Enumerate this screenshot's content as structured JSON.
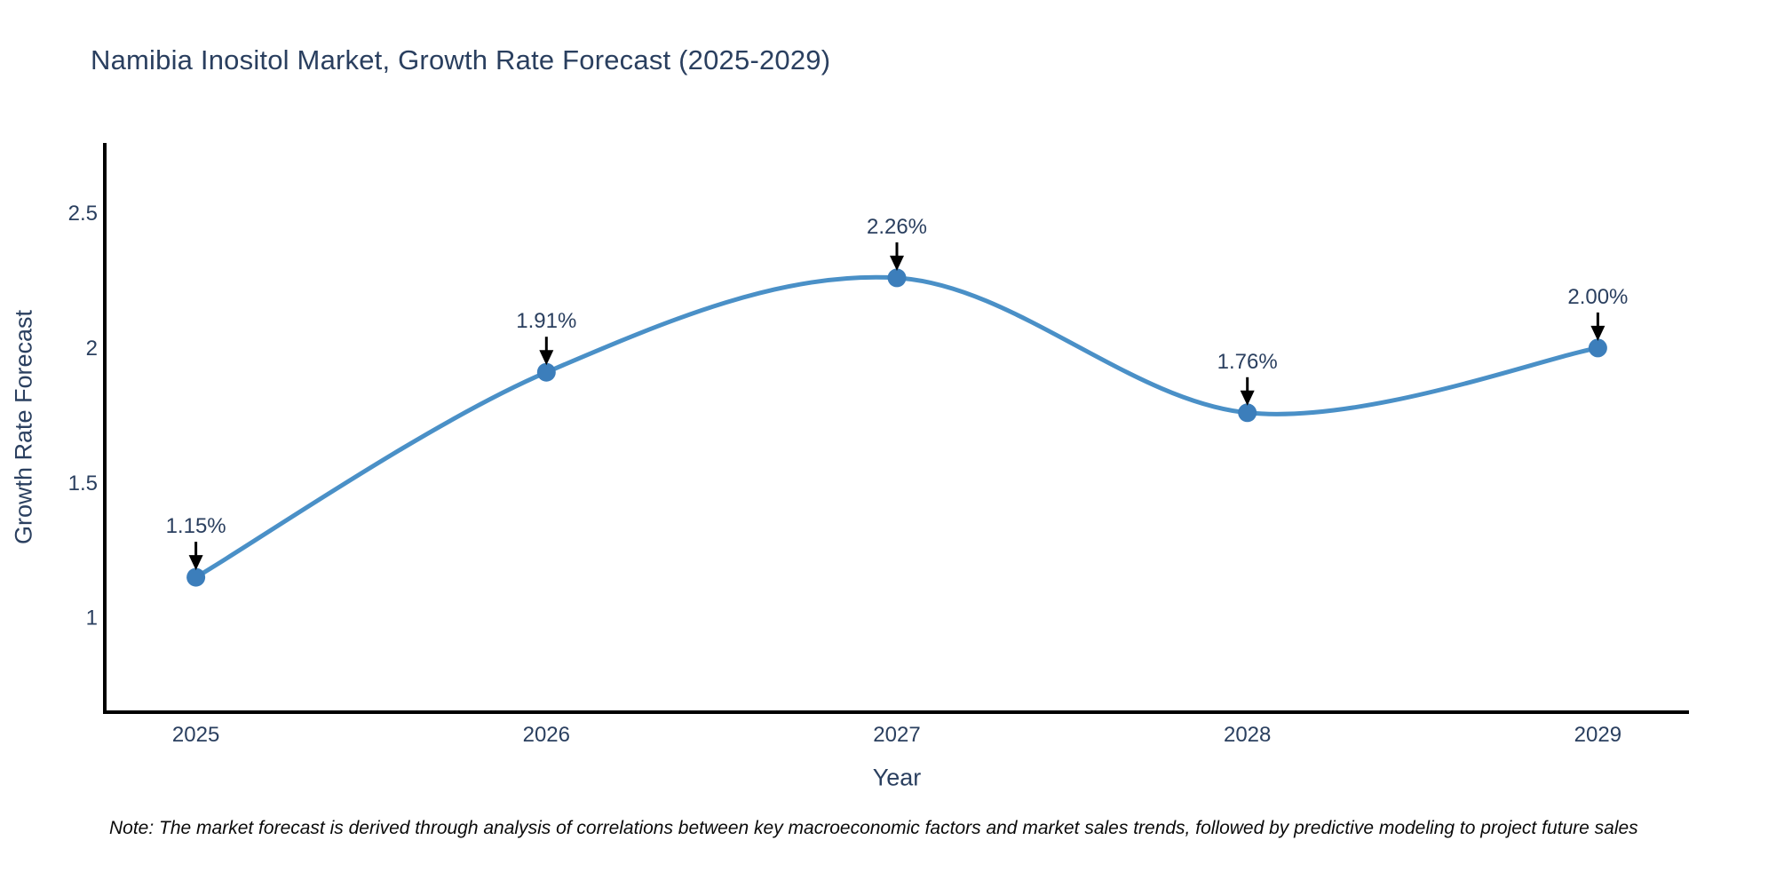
{
  "title": "Namibia Inositol Market, Growth Rate Forecast (2025-2029)",
  "note": "Note: The market forecast is derived through analysis of correlations between key macroeconomic factors and market sales trends, followed by predictive modeling to project future sales",
  "chart_data": {
    "type": "line",
    "title": "Namibia Inositol Market, Growth Rate Forecast (2025-2029)",
    "xlabel": "Year",
    "ylabel": "Growth Rate Forecast",
    "categories": [
      "2025",
      "2026",
      "2027",
      "2028",
      "2029"
    ],
    "x": [
      2025,
      2026,
      2027,
      2028,
      2029
    ],
    "series": [
      {
        "name": "Growth Rate Forecast",
        "values": [
          1.15,
          1.91,
          2.26,
          1.76,
          2.0
        ]
      }
    ],
    "point_labels": [
      "1.15%",
      "1.91%",
      "2.26%",
      "1.76%",
      "2.00%"
    ],
    "yticks": [
      1,
      1.5,
      2,
      2.5
    ],
    "ytick_labels": [
      "1",
      "1.5",
      "2",
      "2.5"
    ],
    "ylim": [
      0.65,
      2.76
    ],
    "xlim": [
      2024.74,
      2029.26
    ],
    "grid": false,
    "legend": "none",
    "line_shape": "spline",
    "colors": {
      "line": "#4a90c7",
      "marker": "#3c7ebb",
      "axis": "#000000",
      "text": "#2a3f5f",
      "annotation_arrow": "#000000",
      "background": "#ffffff"
    }
  }
}
